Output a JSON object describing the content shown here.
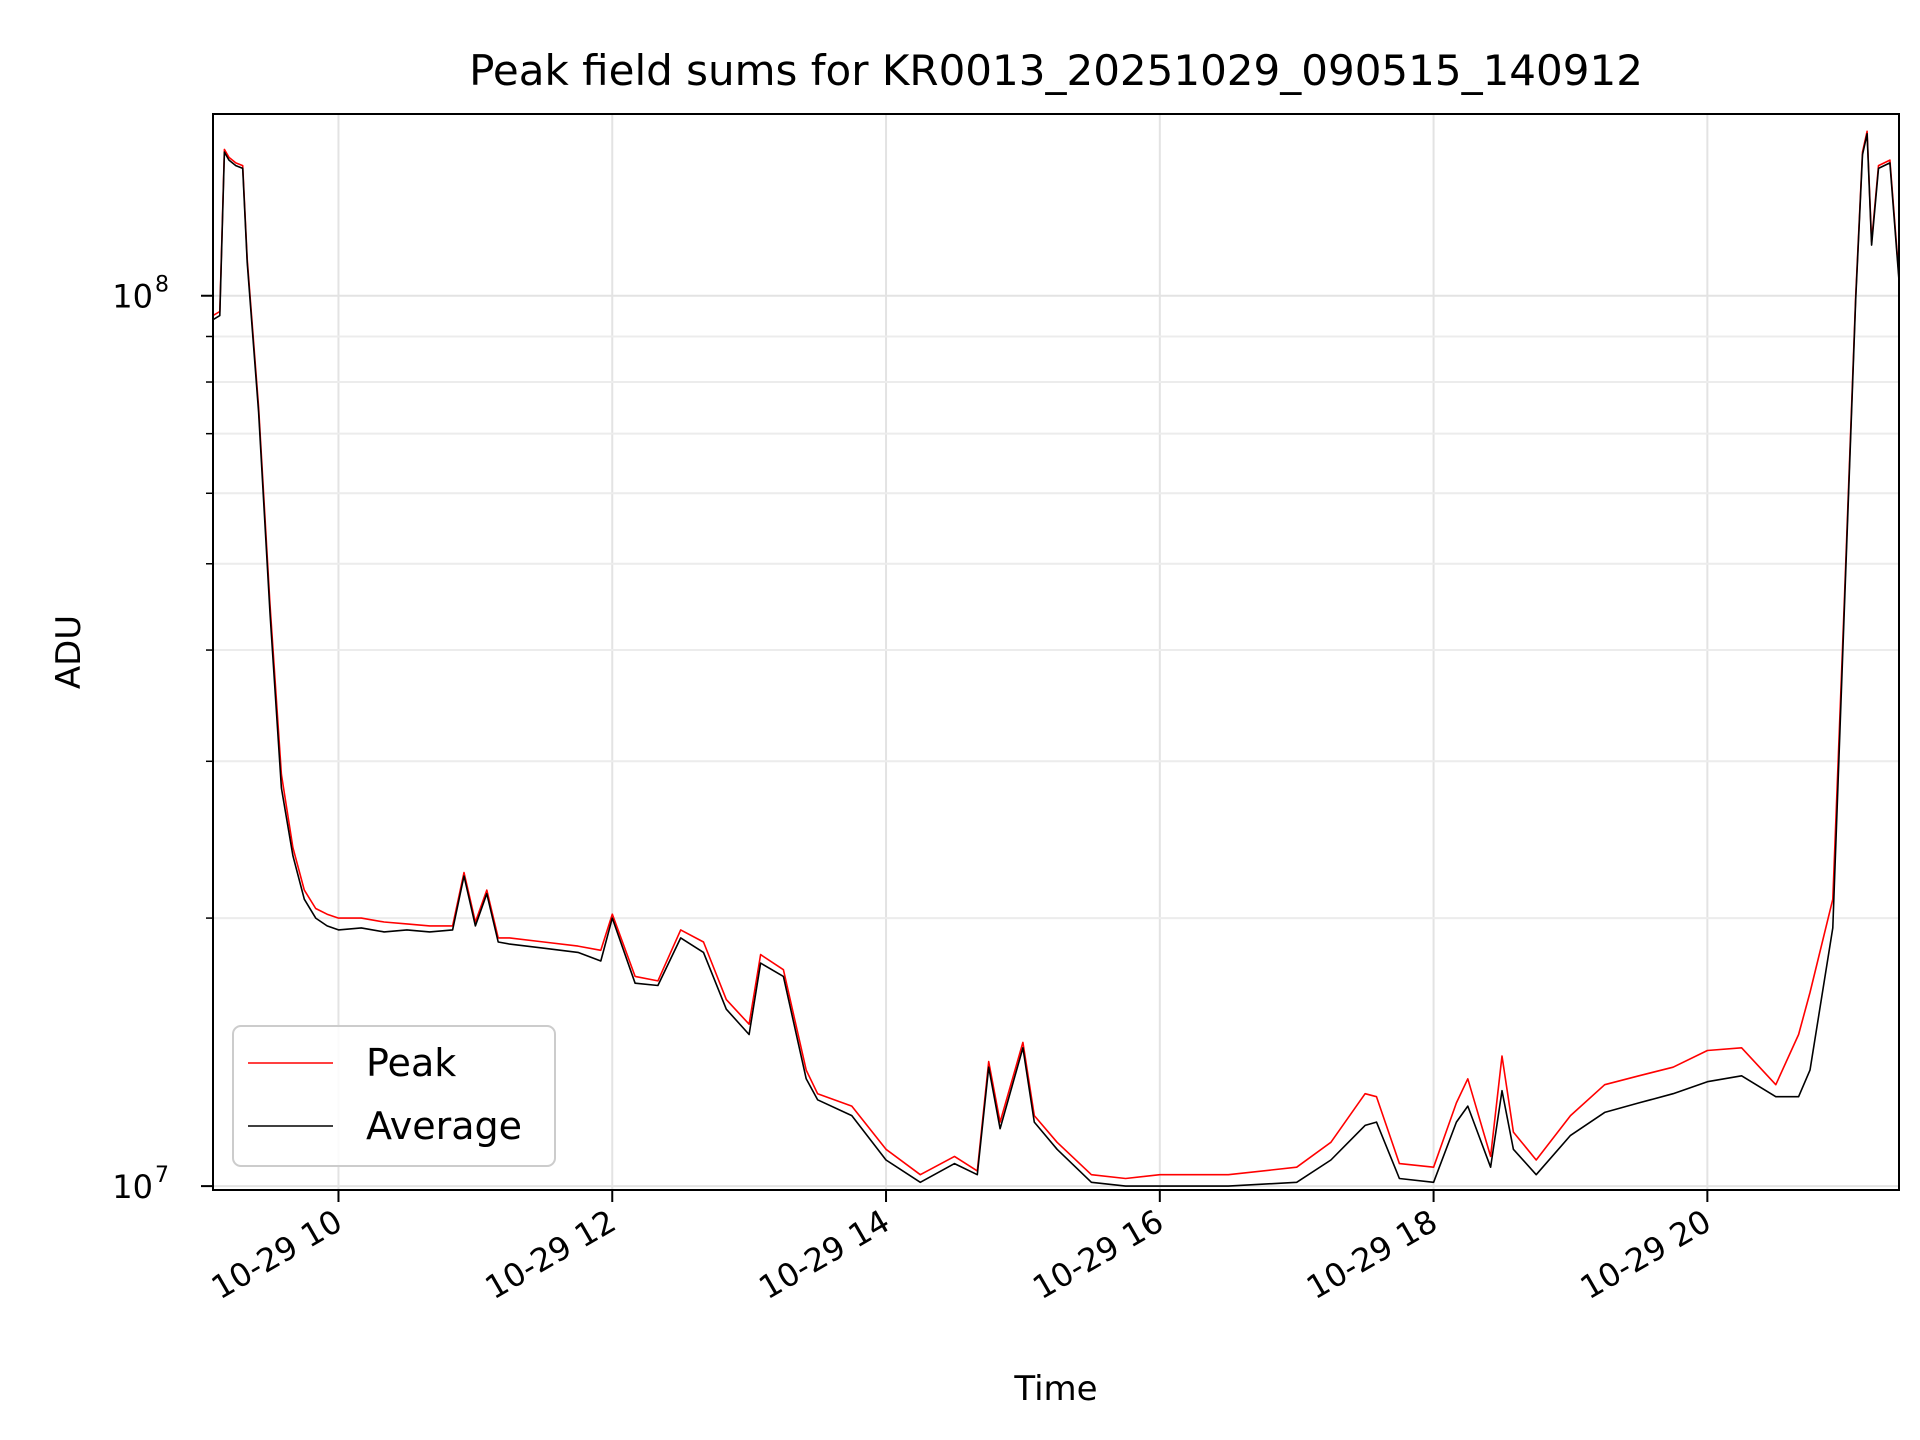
{
  "chart_data": {
    "type": "line",
    "title": "Peak field sums for KR0013_20251029_090515_140912",
    "xlabel": "Time",
    "ylabel": "ADU",
    "yscale": "log",
    "ylim": [
      9900000,
      160000000
    ],
    "xlim": [
      "10-29 09:05",
      "10-29 21:24"
    ],
    "x_ticks": [
      "10-29 10",
      "10-29 12",
      "10-29 14",
      "10-29 16",
      "10-29 18",
      "10-29 20"
    ],
    "y_ticks": [
      {
        "value": 10000000,
        "base": "10",
        "exp": "7"
      },
      {
        "value": 100000000,
        "base": "10",
        "exp": "8"
      }
    ],
    "grid": true,
    "legend_position": "lower-left",
    "series": [
      {
        "name": "Peak",
        "color": "#ff0000",
        "x": [
          "09:05",
          "09:08",
          "09:10",
          "09:12",
          "09:15",
          "09:18",
          "09:20",
          "09:25",
          "09:30",
          "09:35",
          "09:40",
          "09:45",
          "09:50",
          "09:55",
          "10:00",
          "10:10",
          "10:20",
          "10:30",
          "10:40",
          "10:50",
          "10:55",
          "11:00",
          "11:05",
          "11:10",
          "11:15",
          "11:30",
          "11:45",
          "11:55",
          "12:00",
          "12:10",
          "12:20",
          "12:30",
          "12:40",
          "12:50",
          "13:00",
          "13:05",
          "13:15",
          "13:25",
          "13:30",
          "13:45",
          "14:00",
          "14:15",
          "14:30",
          "14:40",
          "14:45",
          "14:50",
          "15:00",
          "15:05",
          "15:15",
          "15:30",
          "15:45",
          "16:00",
          "16:30",
          "17:00",
          "17:15",
          "17:30",
          "17:35",
          "17:45",
          "18:00",
          "18:10",
          "18:15",
          "18:25",
          "18:30",
          "18:35",
          "18:45",
          "19:00",
          "19:15",
          "19:30",
          "19:45",
          "20:00",
          "20:15",
          "20:30",
          "20:40",
          "20:45",
          "20:55",
          "21:00",
          "21:05",
          "21:08",
          "21:10",
          "21:12",
          "21:15",
          "21:20",
          "21:24"
        ],
        "y": [
          95000000,
          96000000,
          146000000,
          143000000,
          141000000,
          140000000,
          110000000,
          75000000,
          45000000,
          29000000,
          24000000,
          21500000,
          20500000,
          20200000,
          20000000,
          20000000,
          19800000,
          19700000,
          19600000,
          19600000,
          22500000,
          19800000,
          21500000,
          19000000,
          19000000,
          18800000,
          18600000,
          18400000,
          20200000,
          17200000,
          17000000,
          19400000,
          18800000,
          16200000,
          15200000,
          18200000,
          17500000,
          13500000,
          12700000,
          12300000,
          11000000,
          10300000,
          10800000,
          10400000,
          13800000,
          11800000,
          14500000,
          12000000,
          11200000,
          10300000,
          10200000,
          10300000,
          10300000,
          10500000,
          11200000,
          12700000,
          12600000,
          10600000,
          10500000,
          12400000,
          13200000,
          10800000,
          14000000,
          11500000,
          10700000,
          12000000,
          13000000,
          13300000,
          13600000,
          14200000,
          14300000,
          13000000,
          14800000,
          16500000,
          21000000,
          45000000,
          100000000,
          145000000,
          153000000,
          115000000,
          140000000,
          142000000,
          105000000
        ]
      },
      {
        "name": "Average",
        "color": "#000000",
        "x": [
          "09:05",
          "09:08",
          "09:10",
          "09:12",
          "09:15",
          "09:18",
          "09:20",
          "09:25",
          "09:30",
          "09:35",
          "09:40",
          "09:45",
          "09:50",
          "09:55",
          "10:00",
          "10:10",
          "10:20",
          "10:30",
          "10:40",
          "10:50",
          "10:55",
          "11:00",
          "11:05",
          "11:10",
          "11:15",
          "11:30",
          "11:45",
          "11:55",
          "12:00",
          "12:10",
          "12:20",
          "12:30",
          "12:40",
          "12:50",
          "13:00",
          "13:05",
          "13:15",
          "13:25",
          "13:30",
          "13:45",
          "14:00",
          "14:15",
          "14:30",
          "14:40",
          "14:45",
          "14:50",
          "15:00",
          "15:05",
          "15:15",
          "15:30",
          "15:45",
          "16:00",
          "16:30",
          "17:00",
          "17:15",
          "17:30",
          "17:35",
          "17:45",
          "18:00",
          "18:10",
          "18:15",
          "18:25",
          "18:30",
          "18:35",
          "18:45",
          "19:00",
          "19:15",
          "19:30",
          "19:45",
          "20:00",
          "20:15",
          "20:30",
          "20:40",
          "20:45",
          "20:55",
          "21:00",
          "21:05",
          "21:08",
          "21:10",
          "21:12",
          "21:15",
          "21:20",
          "21:24"
        ],
        "y": [
          94000000,
          95000000,
          145000000,
          142000000,
          140000000,
          139000000,
          109000000,
          74000000,
          44000000,
          28000000,
          23500000,
          21000000,
          20000000,
          19600000,
          19400000,
          19500000,
          19300000,
          19400000,
          19300000,
          19400000,
          22300000,
          19600000,
          21300000,
          18800000,
          18700000,
          18500000,
          18300000,
          17900000,
          20000000,
          16900000,
          16800000,
          19000000,
          18300000,
          15800000,
          14800000,
          17800000,
          17200000,
          13200000,
          12500000,
          12000000,
          10700000,
          10100000,
          10600000,
          10300000,
          13600000,
          11600000,
          14300000,
          11800000,
          11000000,
          10100000,
          10000000,
          10000000,
          10000000,
          10100000,
          10700000,
          11700000,
          11800000,
          10200000,
          10100000,
          11800000,
          12300000,
          10500000,
          12800000,
          11000000,
          10300000,
          11400000,
          12100000,
          12400000,
          12700000,
          13100000,
          13300000,
          12600000,
          12600000,
          13500000,
          19500000,
          44000000,
          99000000,
          144000000,
          152000000,
          114000000,
          139000000,
          141000000,
          104000000
        ]
      }
    ]
  }
}
